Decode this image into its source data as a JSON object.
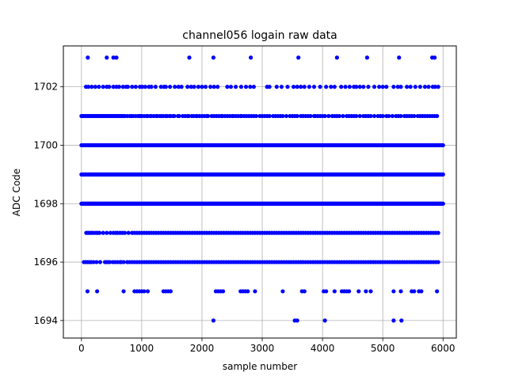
{
  "chart_data": {
    "type": "scatter",
    "title": "channel056 logain raw data",
    "xlabel": "sample number",
    "ylabel": "ADC Code",
    "xlim": [
      -300,
      6220
    ],
    "ylim": [
      1693.4,
      1703.4
    ],
    "xticks": [
      0,
      1000,
      2000,
      3000,
      4000,
      5000,
      6000
    ],
    "yticks": [
      1694,
      1696,
      1698,
      1700,
      1702
    ],
    "xtick_labels": [
      "0",
      "1000",
      "2000",
      "3000",
      "4000",
      "5000",
      "6000"
    ],
    "ytick_labels": [
      "1694",
      "1696",
      "1698",
      "1700",
      "1702"
    ],
    "grid": true,
    "marker_color": "#0000ff",
    "series": [
      {
        "points": [
          {
            "y": 1703,
            "x": [
              105,
              420,
              530,
              580,
              1790,
              2190,
              2810,
              3600,
              4240,
              4740,
              5270,
              5820,
              5860
            ]
          },
          {
            "y": 1702,
            "x": [
              75,
              115,
              170,
              230,
              290,
              360,
              420,
              460,
              530,
              580,
              625,
              690,
              740,
              770,
              840,
              900,
              970,
              1010,
              1060,
              1120,
              1160,
              1230,
              1320,
              1370,
              1400,
              1470,
              1550,
              1610,
              1660,
              1760,
              1820,
              1870,
              1940,
              2000,
              2060,
              2140,
              2200,
              2260,
              2420,
              2480,
              2560,
              2650,
              2730,
              2800,
              2860,
              3080,
              3120,
              3240,
              3320,
              3420,
              3520,
              3580,
              3640,
              3700,
              3780,
              3860,
              3960,
              4060,
              4140,
              4200,
              4310,
              4380,
              4450,
              4520,
              4560,
              4620,
              4680,
              4760,
              4860,
              4940,
              5000,
              5060,
              5180,
              5250,
              5300,
              5400,
              5460,
              5540,
              5620,
              5700,
              5760,
              5830,
              5870,
              5920
            ]
          },
          {
            "y": 1701,
            "x": [
              0,
              20,
              40,
              60,
              80,
              100,
              120,
              140,
              160,
              180,
              200,
              220,
              240,
              260,
              280,
              300,
              320,
              340,
              360,
              380,
              400,
              420,
              440,
              460,
              480,
              500,
              520,
              540,
              560,
              580,
              600,
              620,
              640,
              660,
              680,
              700,
              720,
              760,
              800,
              830,
              860,
              900,
              940,
              960,
              980,
              1000,
              1040,
              1080,
              1100,
              1140,
              1160,
              1200,
              1240,
              1260,
              1300,
              1330,
              1360,
              1400,
              1420,
              1460,
              1480,
              1520,
              1540,
              1600,
              1620,
              1680,
              1720,
              1760,
              1780,
              1830,
              1860,
              1900,
              1920,
              1960,
              2000,
              2040,
              2080,
              2100,
              2160,
              2200,
              2240,
              2280,
              2320,
              2340,
              2380,
              2420,
              2460,
              2500,
              2520,
              2560,
              2600,
              2640,
              2660,
              2700,
              2740,
              2780,
              2820,
              2860,
              2900,
              2960,
              3000,
              3040,
              3080,
              3120,
              3180,
              3220,
              3260,
              3300,
              3340,
              3400,
              3460,
              3500,
              3540,
              3580,
              3640,
              3680,
              3720,
              3760,
              3800,
              3860,
              3880,
              3920,
              3960,
              4000,
              4040,
              4100,
              4160,
              4200,
              4240,
              4280,
              4340,
              4400,
              4440,
              4480,
              4520,
              4560,
              4620,
              4680,
              4720,
              4760,
              4800,
              4860,
              4920,
              4960,
              5000,
              5060,
              5100,
              5160,
              5220,
              5260,
              5300,
              5360,
              5400,
              5440,
              5480,
              5520,
              5580,
              5620,
              5660,
              5700,
              5740,
              5780,
              5820,
              5860,
              5900
            ]
          },
          {
            "y": 1700,
            "x": [
              0,
              6000,
              15
            ]
          },
          {
            "y": 1699,
            "x": [
              0,
              6000,
              15
            ]
          },
          {
            "y": 1698,
            "x": [
              0,
              6000,
              15
            ]
          },
          {
            "y": 1697,
            "x": [
              80,
              110,
              140,
              170,
              200,
              240,
              270,
              300,
              360,
              420,
              480,
              530,
              570,
              600,
              640,
              680,
              720,
              780,
              840,
              880,
              920,
              960,
              1000,
              1040,
              1080,
              1120,
              1160,
              1200,
              1240,
              1280,
              1320,
              1360,
              1400,
              1440,
              1480,
              1520,
              1560,
              1600,
              1640,
              1680,
              1720,
              1760,
              1800,
              1840,
              1880,
              1920,
              1960,
              2000,
              2040,
              2080,
              2120,
              2160,
              2200,
              2240,
              2280,
              2320,
              2360,
              2400,
              2440,
              2480,
              2520,
              2560,
              2600,
              2640,
              2680,
              2720,
              2760,
              2800,
              2840,
              2880,
              2920,
              2960,
              3000,
              3040,
              3080,
              3120,
              3160,
              3200,
              3240,
              3280,
              3320,
              3360,
              3400,
              3440,
              3480,
              3520,
              3560,
              3600,
              3640,
              3680,
              3720,
              3760,
              3800,
              3840,
              3880,
              3920,
              3960,
              4000,
              4040,
              4080,
              4120,
              4160,
              4200,
              4240,
              4280,
              4320,
              4360,
              4400,
              4440,
              4480,
              4520,
              4560,
              4600,
              4640,
              4680,
              4720,
              4760,
              4800,
              4840,
              4880,
              4920,
              4960,
              5000,
              5040,
              5080,
              5120,
              5160,
              5200,
              5240,
              5280,
              5320,
              5360,
              5400,
              5440,
              5480,
              5520,
              5560,
              5600,
              5640,
              5680,
              5720,
              5760,
              5800,
              5840,
              5880,
              5920
            ]
          },
          {
            "y": 1696,
            "x": [
              40,
              70,
              100,
              130,
              160,
              200,
              250,
              310,
              390,
              410,
              440,
              470,
              520,
              560,
              600,
              640,
              660,
              700,
              760,
              800,
              840,
              880,
              920,
              960,
              1000,
              1040,
              1080,
              1120,
              1160,
              1200,
              1240,
              1280,
              1320,
              1360,
              1400,
              1440,
              1480,
              1520,
              1560,
              1600,
              1640,
              1680,
              1720,
              1760,
              1800,
              1840,
              1880,
              1920,
              1960,
              2000,
              2040,
              2080,
              2120,
              2160,
              2200,
              2240,
              2280,
              2320,
              2360,
              2400,
              2440,
              2480,
              2520,
              2560,
              2600,
              2640,
              2680,
              2720,
              2760,
              2800,
              2840,
              2880,
              2920,
              2960,
              3000,
              3040,
              3080,
              3120,
              3160,
              3200,
              3240,
              3280,
              3320,
              3360,
              3400,
              3440,
              3480,
              3520,
              3560,
              3600,
              3640,
              3680,
              3720,
              3760,
              3800,
              3840,
              3880,
              3920,
              3960,
              4000,
              4040,
              4080,
              4120,
              4160,
              4200,
              4240,
              4280,
              4320,
              4360,
              4400,
              4440,
              4480,
              4520,
              4560,
              4600,
              4640,
              4680,
              4720,
              4760,
              4800,
              4840,
              4880,
              4920,
              4960,
              5000,
              5040,
              5080,
              5120,
              5160,
              5200,
              5240,
              5280,
              5320,
              5360,
              5400,
              5440,
              5480,
              5520,
              5560,
              5600,
              5640,
              5680,
              5720,
              5760,
              5800,
              5840,
              5880,
              5920
            ]
          },
          {
            "y": 1695,
            "x": [
              100,
              260,
              700,
              880,
              920,
              960,
              1000,
              1040,
              1100,
              1360,
              1400,
              1440,
              1480,
              2230,
              2270,
              2310,
              2350,
              2640,
              2680,
              2720,
              2760,
              2880,
              3340,
              3660,
              3700,
              4020,
              4060,
              4200,
              4320,
              4360,
              4400,
              4440,
              4600,
              4720,
              4800,
              5180,
              5300,
              5480,
              5520,
              5600,
              5640,
              5900
            ]
          },
          {
            "y": 1694,
            "x": [
              2190,
              3540,
              3580,
              4040,
              5180,
              5310
            ]
          }
        ]
      }
    ]
  }
}
